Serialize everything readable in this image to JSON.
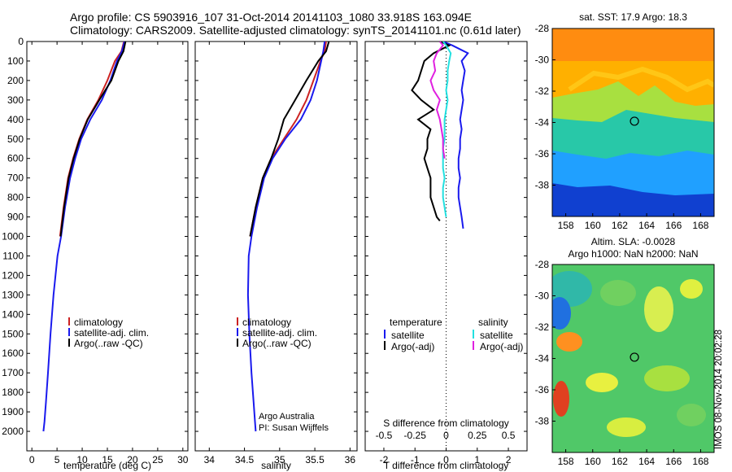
{
  "header": {
    "line1": "Argo profile: CS 5903916_107 31-Oct-2014 20141103_1080 33.918S 163.094E",
    "line2": "Climatology: CARS2009. Satellite-adjusted climatology: synTS_20141101.nc (0.61d later)"
  },
  "footer": {
    "stamp": "IMOS 08-Nov-2014 20:02:28",
    "credit1": "Argo Australia",
    "credit2": "PI: Susan Wijffels"
  },
  "colors": {
    "climatology": "#cc2222",
    "satellite": "#1a1aee",
    "argo": "#000000",
    "salinity_satellite": "#22e0e0",
    "salinity_argo": "#e020e0"
  },
  "chart_data": [
    {
      "type": "line",
      "xlabel": "temperature (deg C)",
      "ylabel": "",
      "xlim": [
        -1,
        31
      ],
      "ylim": [
        2100,
        0
      ],
      "xticks": [
        0,
        5,
        10,
        15,
        20,
        25,
        30
      ],
      "yticks": [
        0,
        100,
        200,
        300,
        400,
        500,
        600,
        700,
        800,
        900,
        1000,
        1100,
        1200,
        1300,
        1400,
        1500,
        1600,
        1700,
        1800,
        1900,
        2000
      ],
      "legend": [
        "climatology",
        "satellite-adj. clim.",
        "Argo(..raw -QC)"
      ],
      "legend_position": "bottom-right",
      "series": [
        {
          "name": "climatology",
          "x": [
            18.3,
            17.8,
            16.5,
            15.0,
            13.2,
            11.0,
            9.4,
            8.2,
            7.2,
            6.3,
            5.6
          ],
          "y": [
            0,
            50,
            100,
            200,
            300,
            400,
            500,
            600,
            700,
            850,
            1000
          ]
        },
        {
          "name": "satellite-adj. clim.",
          "x": [
            18.4,
            17.9,
            16.9,
            15.6,
            13.9,
            11.6,
            9.8,
            8.6,
            7.6,
            6.6,
            5.8,
            5.1,
            4.3,
            3.7,
            3.2,
            2.8,
            2.5,
            2.3
          ],
          "y": [
            0,
            50,
            100,
            200,
            300,
            400,
            500,
            600,
            700,
            850,
            1000,
            1100,
            1300,
            1500,
            1700,
            1850,
            1950,
            2000
          ]
        },
        {
          "name": "Argo(..raw -QC)",
          "x": [
            18.6,
            18.2,
            17.2,
            15.8,
            13.4,
            11.1,
            9.5,
            8.3,
            7.3,
            6.4,
            5.7
          ],
          "y": [
            0,
            50,
            100,
            200,
            300,
            400,
            500,
            600,
            700,
            850,
            1000
          ]
        }
      ]
    },
    {
      "type": "line",
      "xlabel": "salinity",
      "ylabel": "",
      "xlim": [
        33.8,
        36.1
      ],
      "ylim": [
        2100,
        0
      ],
      "xticks": [
        34,
        34.5,
        35,
        35.5,
        36
      ],
      "yticks": [
        0,
        100,
        200,
        300,
        400,
        500,
        600,
        700,
        800,
        900,
        1000,
        1100,
        1200,
        1300,
        1400,
        1500,
        1600,
        1700,
        1800,
        1900,
        2000
      ],
      "legend": [
        "climatology",
        "satellite-adj. clim.",
        "Argo(..raw -QC)"
      ],
      "legend_position": "bottom-right",
      "series": [
        {
          "name": "climatology",
          "x": [
            35.66,
            35.64,
            35.58,
            35.48,
            35.38,
            35.24,
            35.06,
            34.88,
            34.76,
            34.66,
            34.58
          ],
          "y": [
            0,
            50,
            100,
            200,
            300,
            400,
            500,
            600,
            700,
            850,
            1000
          ]
        },
        {
          "name": "satellite-adj. clim.",
          "x": [
            35.64,
            35.62,
            35.59,
            35.53,
            35.44,
            35.3,
            35.08,
            34.9,
            34.78,
            34.68,
            34.6,
            34.56,
            34.55,
            34.57,
            34.6,
            34.63,
            34.65,
            34.66
          ],
          "y": [
            0,
            50,
            100,
            200,
            300,
            400,
            500,
            600,
            700,
            850,
            1000,
            1100,
            1300,
            1500,
            1700,
            1850,
            1950,
            2000
          ]
        },
        {
          "name": "Argo(..raw -QC)",
          "x": [
            35.7,
            35.66,
            35.55,
            35.38,
            35.22,
            35.06,
            34.98,
            34.88,
            34.76,
            34.66,
            34.58
          ],
          "y": [
            0,
            50,
            100,
            200,
            300,
            400,
            500,
            600,
            700,
            850,
            1000
          ]
        }
      ]
    },
    {
      "type": "line",
      "xlabel": "T difference from climatology",
      "xlabel2": "S difference from climatology",
      "ylabel": "",
      "xlim": [
        -2.6,
        2.6
      ],
      "ylim": [
        2100,
        0
      ],
      "xticks": [
        -2,
        -1,
        0,
        1,
        2
      ],
      "xticks2_labels": [
        "-0.5",
        "-0.25",
        "0",
        "0.25",
        "0.5"
      ],
      "xticks2_positions": [
        -2,
        -1,
        0,
        1,
        2
      ],
      "yticks": [
        0,
        100,
        200,
        300,
        400,
        500,
        600,
        700,
        800,
        900,
        1000,
        1100,
        1200,
        1300,
        1400,
        1500,
        1600,
        1700,
        1800,
        1900,
        2000
      ],
      "legend_groups": [
        {
          "heading": "temperature",
          "items": [
            "satellite",
            "Argo(-adj)"
          ]
        },
        {
          "heading": "salinity",
          "items": [
            "satellite",
            "Argo(-adj)"
          ]
        }
      ],
      "legend_position": "bottom",
      "series": [
        {
          "name": "temperature satellite",
          "x": [
            -0.1,
            0.2,
            0.7,
            0.5,
            0.6,
            0.55,
            0.5,
            0.55,
            0.5,
            0.45,
            0.5,
            0.45,
            0.45,
            0.4,
            0.4,
            0.45,
            0.4,
            0.4,
            0.45,
            0.5,
            0.55
          ],
          "y": [
            0,
            20,
            60,
            100,
            150,
            200,
            250,
            300,
            350,
            400,
            450,
            500,
            550,
            600,
            650,
            700,
            750,
            800,
            850,
            900,
            960
          ]
        },
        {
          "name": "temperature Argo(-adj)",
          "x": [
            -0.2,
            0.1,
            -0.4,
            -0.7,
            -0.8,
            -0.9,
            -1.1,
            -0.8,
            -0.4,
            -0.9,
            -0.5,
            -0.6,
            -0.6,
            -0.7,
            -0.6,
            -0.5,
            -0.5,
            -0.5,
            -0.4,
            -0.3,
            -0.2
          ],
          "y": [
            0,
            20,
            60,
            100,
            150,
            200,
            250,
            300,
            350,
            400,
            450,
            500,
            550,
            600,
            650,
            700,
            750,
            800,
            850,
            900,
            920
          ]
        },
        {
          "name": "salinity satellite",
          "x": [
            -0.1,
            0.0,
            0.15,
            0.1,
            0.05,
            0.05,
            0.0,
            0.05,
            0.0,
            -0.05,
            -0.05,
            -0.05,
            -0.1,
            -0.1,
            -0.1,
            -0.05,
            -0.1,
            -0.1,
            -0.05,
            0.0
          ],
          "y": [
            0,
            20,
            60,
            100,
            150,
            200,
            250,
            300,
            350,
            400,
            450,
            500,
            550,
            600,
            650,
            700,
            750,
            800,
            850,
            900
          ]
        },
        {
          "name": "salinity Argo(-adj)",
          "x": [
            -0.2,
            -0.1,
            -0.3,
            -0.4,
            -0.35,
            -0.5,
            -0.4,
            -0.2,
            -0.3,
            -0.2,
            -0.15,
            -0.1,
            -0.1,
            -0.05
          ],
          "y": [
            0,
            20,
            60,
            100,
            150,
            200,
            250,
            300,
            350,
            400,
            450,
            500,
            550,
            600
          ]
        }
      ],
      "reference_line": {
        "x": 0,
        "style": "dotted"
      }
    },
    {
      "type": "heatmap",
      "title": "sat. SST: 17.9 Argo: 18.3",
      "xlim": [
        157,
        169
      ],
      "ylim": [
        -40,
        -28
      ],
      "xticks": [
        158,
        160,
        162,
        164,
        166,
        168
      ],
      "yticks": [
        -28,
        -30,
        -32,
        -34,
        -36,
        -38
      ],
      "marker": {
        "lon": 163.094,
        "lat": -33.918
      }
    },
    {
      "type": "heatmap",
      "title": "Altim. SLA: -0.0028",
      "subtitle": "Argo h1000: NaN h2000: NaN",
      "xlim": [
        157,
        169
      ],
      "ylim": [
        -40,
        -28
      ],
      "xticks": [
        158,
        160,
        162,
        164,
        166,
        168
      ],
      "yticks": [
        -28,
        -30,
        -32,
        -34,
        -36,
        -38
      ],
      "marker": {
        "lon": 163.094,
        "lat": -33.918
      }
    }
  ]
}
